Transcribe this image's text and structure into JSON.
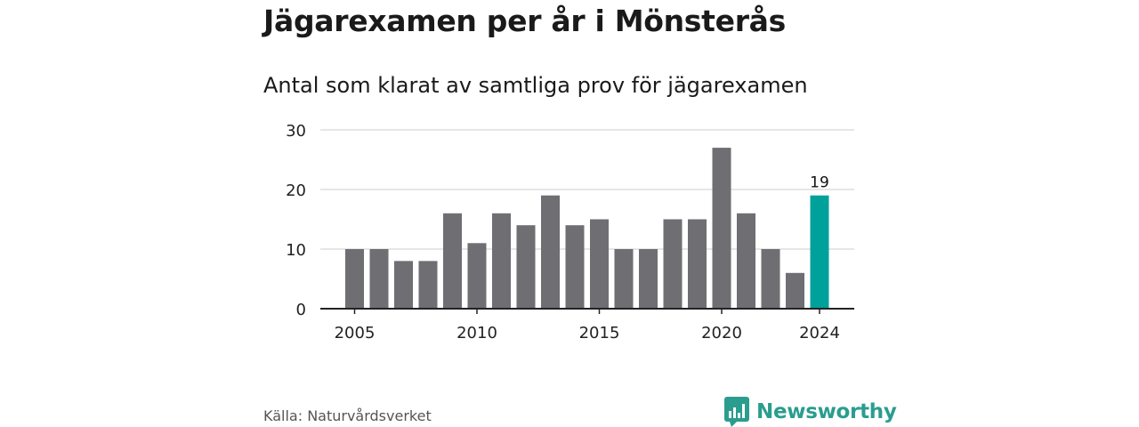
{
  "title": "Jägarexamen per år i Mönsterås",
  "subtitle": "Antal som klarat av samtliga prov för jägarexamen",
  "source": "Källa: Naturvårdsverket",
  "brand": {
    "name": "Newsworthy",
    "icon": "newsworthy-logo-icon"
  },
  "colors": {
    "bar": "#6e6e73",
    "highlight": "#00a19a",
    "grid": "#dddddd",
    "axis": "#222222"
  },
  "chart_data": {
    "type": "bar",
    "categories": [
      2005,
      2006,
      2007,
      2008,
      2009,
      2010,
      2011,
      2012,
      2013,
      2014,
      2015,
      2016,
      2017,
      2018,
      2019,
      2020,
      2021,
      2022,
      2023,
      2024
    ],
    "values": [
      10,
      10,
      8,
      8,
      16,
      11,
      16,
      14,
      19,
      14,
      15,
      10,
      10,
      15,
      15,
      27,
      16,
      10,
      6,
      19
    ],
    "highlight_category": 2024,
    "data_labels": [
      {
        "category": 2024,
        "label": "19"
      }
    ],
    "xticks": [
      2005,
      2010,
      2015,
      2020,
      2024
    ],
    "yticks": [
      0,
      10,
      20,
      30
    ],
    "ylim": [
      0,
      30
    ],
    "xlabel": "",
    "ylabel": "",
    "grid": true,
    "legend": "none"
  }
}
